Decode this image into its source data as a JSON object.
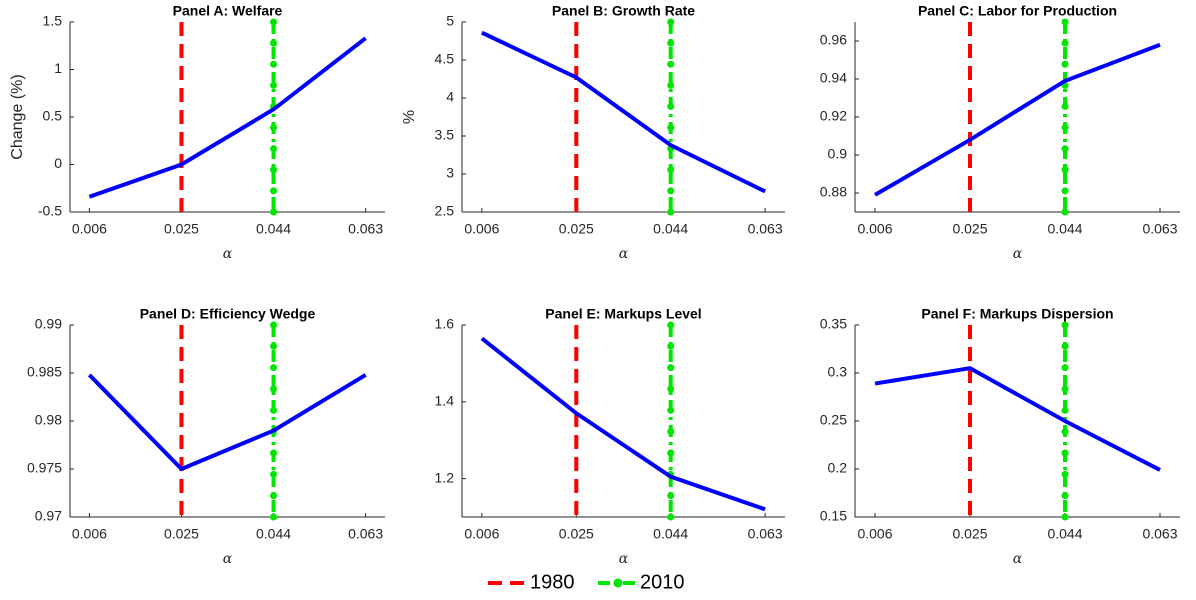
{
  "chart_data": [
    {
      "type": "line",
      "title": "Panel A: Welfare",
      "xlabel": "α",
      "ylabel": "Change (%)",
      "x": [
        0.006,
        0.025,
        0.044,
        0.063
      ],
      "values": [
        -0.34,
        0.0,
        0.58,
        1.33
      ],
      "color": "#0000ff",
      "xlim": [
        0.002,
        0.067
      ],
      "xticks": [
        0.006,
        0.025,
        0.044,
        0.063
      ],
      "ylim": [
        -0.5,
        1.5
      ],
      "yticks": [
        -0.5,
        0,
        0.5,
        1,
        1.5
      ]
    },
    {
      "type": "line",
      "title": "Panel B: Growth Rate",
      "xlabel": "α",
      "ylabel": "%",
      "x": [
        0.006,
        0.025,
        0.044,
        0.063
      ],
      "values": [
        4.86,
        4.27,
        3.38,
        2.77
      ],
      "color": "#0000ff",
      "xlim": [
        0.002,
        0.067
      ],
      "xticks": [
        0.006,
        0.025,
        0.044,
        0.063
      ],
      "ylim": [
        2.5,
        5
      ],
      "yticks": [
        2.5,
        3,
        3.5,
        4,
        4.5,
        5
      ]
    },
    {
      "type": "line",
      "title": "Panel C: Labor for Production",
      "xlabel": "α",
      "x": [
        0.006,
        0.025,
        0.044,
        0.063
      ],
      "values": [
        0.879,
        0.908,
        0.939,
        0.958
      ],
      "color": "#0000ff",
      "xlim": [
        0.002,
        0.067
      ],
      "xticks": [
        0.006,
        0.025,
        0.044,
        0.063
      ],
      "ylim": [
        0.87,
        0.97
      ],
      "yticks": [
        0.88,
        0.9,
        0.92,
        0.94,
        0.96
      ]
    },
    {
      "type": "line",
      "title": "Panel D: Efficiency Wedge",
      "xlabel": "α",
      "x": [
        0.006,
        0.025,
        0.044,
        0.063
      ],
      "values": [
        0.9848,
        0.975,
        0.979,
        0.9848
      ],
      "color": "#0000ff",
      "xlim": [
        0.002,
        0.067
      ],
      "xticks": [
        0.006,
        0.025,
        0.044,
        0.063
      ],
      "ylim": [
        0.97,
        0.99
      ],
      "yticks": [
        0.97,
        0.975,
        0.98,
        0.985,
        0.99
      ]
    },
    {
      "type": "line",
      "title": "Panel E: Markups Level",
      "xlabel": "α",
      "x": [
        0.006,
        0.025,
        0.044,
        0.063
      ],
      "values": [
        1.565,
        1.37,
        1.205,
        1.12
      ],
      "color": "#0000ff",
      "xlim": [
        0.002,
        0.067
      ],
      "xticks": [
        0.006,
        0.025,
        0.044,
        0.063
      ],
      "ylim": [
        1.1,
        1.6
      ],
      "yticks": [
        1.2,
        1.4,
        1.6
      ]
    },
    {
      "type": "line",
      "title": "Panel F: Markups Dispersion",
      "xlabel": "α",
      "x": [
        0.006,
        0.025,
        0.044,
        0.063
      ],
      "values": [
        0.289,
        0.305,
        0.25,
        0.199
      ],
      "color": "#0000ff",
      "xlim": [
        0.002,
        0.067
      ],
      "xticks": [
        0.006,
        0.025,
        0.044,
        0.063
      ],
      "ylim": [
        0.15,
        0.35
      ],
      "yticks": [
        0.15,
        0.2,
        0.25,
        0.3,
        0.35
      ]
    }
  ],
  "reference_lines": [
    {
      "name": "1980",
      "x": 0.025,
      "color": "#ff0000",
      "style": "dashed"
    },
    {
      "name": "2010",
      "x": 0.044,
      "color": "#00e600",
      "style": "dash-dot-marker"
    }
  ]
}
